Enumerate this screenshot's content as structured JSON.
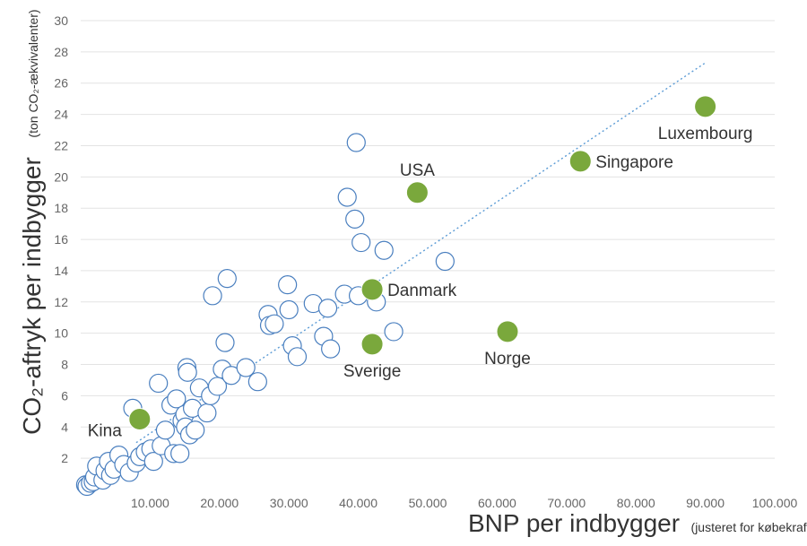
{
  "chart_data": {
    "type": "scatter",
    "xlabel": "BNP per indbygger",
    "xlabel_note": "(justeret for købekraft)",
    "ylabel": "CO₂-aftryk per indbygger",
    "ylabel_note": "(ton CO₂-ækvivalenter)",
    "xlim": [
      0,
      100000
    ],
    "ylim": [
      0,
      30
    ],
    "x_ticks": [
      {
        "value": 10000,
        "label": "10.000"
      },
      {
        "value": 20000,
        "label": "20.000"
      },
      {
        "value": 30000,
        "label": "30.000"
      },
      {
        "value": 40000,
        "label": "40.000"
      },
      {
        "value": 50000,
        "label": "50.000"
      },
      {
        "value": 60000,
        "label": "60.000"
      },
      {
        "value": 70000,
        "label": "70.000"
      },
      {
        "value": 80000,
        "label": "80.000"
      },
      {
        "value": 90000,
        "label": "90.000"
      },
      {
        "value": 100000,
        "label": "100.000"
      }
    ],
    "y_ticks": [
      {
        "value": 2,
        "label": "2"
      },
      {
        "value": 4,
        "label": "4"
      },
      {
        "value": 6,
        "label": "6"
      },
      {
        "value": 8,
        "label": "8"
      },
      {
        "value": 10,
        "label": "10"
      },
      {
        "value": 12,
        "label": "12"
      },
      {
        "value": 14,
        "label": "14"
      },
      {
        "value": 16,
        "label": "16"
      },
      {
        "value": 18,
        "label": "18"
      },
      {
        "value": 20,
        "label": "20"
      },
      {
        "value": 22,
        "label": "22"
      },
      {
        "value": 24,
        "label": "24"
      },
      {
        "value": 26,
        "label": "26"
      },
      {
        "value": 28,
        "label": "28"
      },
      {
        "value": 30,
        "label": "30"
      }
    ],
    "grid": "horizontal",
    "trendline": {
      "style": "dotted",
      "from": [
        8000,
        3.0
      ],
      "to": [
        90000,
        27.3
      ]
    },
    "highlighted": [
      {
        "label": "Kina",
        "x": 8500,
        "y": 4.5,
        "label_side": "left"
      },
      {
        "label": "Sverige",
        "x": 42000,
        "y": 9.3,
        "label_side": "below"
      },
      {
        "label": "Danmark",
        "x": 42000,
        "y": 12.8,
        "label_side": "right"
      },
      {
        "label": "USA",
        "x": 48500,
        "y": 19.0,
        "label_side": "above"
      },
      {
        "label": "Norge",
        "x": 61500,
        "y": 10.1,
        "label_side": "below"
      },
      {
        "label": "Singapore",
        "x": 72000,
        "y": 21.0,
        "label_side": "right"
      },
      {
        "label": "Luxembourg",
        "x": 90000,
        "y": 24.5,
        "label_side": "below"
      }
    ],
    "points": [
      {
        "x": 700,
        "y": 0.3
      },
      {
        "x": 900,
        "y": 0.2
      },
      {
        "x": 1400,
        "y": 0.4
      },
      {
        "x": 1800,
        "y": 0.5
      },
      {
        "x": 2000,
        "y": 0.8
      },
      {
        "x": 2300,
        "y": 1.5
      },
      {
        "x": 3200,
        "y": 0.6
      },
      {
        "x": 3500,
        "y": 1.2
      },
      {
        "x": 4000,
        "y": 1.8
      },
      {
        "x": 4300,
        "y": 0.9
      },
      {
        "x": 4800,
        "y": 1.3
      },
      {
        "x": 5500,
        "y": 2.2
      },
      {
        "x": 6200,
        "y": 1.6
      },
      {
        "x": 7000,
        "y": 1.1
      },
      {
        "x": 7500,
        "y": 5.2
      },
      {
        "x": 8000,
        "y": 1.7
      },
      {
        "x": 8500,
        "y": 2.1
      },
      {
        "x": 9300,
        "y": 2.4
      },
      {
        "x": 10100,
        "y": 2.6
      },
      {
        "x": 10500,
        "y": 1.8
      },
      {
        "x": 11200,
        "y": 6.8
      },
      {
        "x": 11600,
        "y": 2.8
      },
      {
        "x": 12200,
        "y": 3.8
      },
      {
        "x": 13000,
        "y": 5.4
      },
      {
        "x": 13400,
        "y": 2.3
      },
      {
        "x": 13800,
        "y": 5.8
      },
      {
        "x": 14300,
        "y": 2.3
      },
      {
        "x": 14600,
        "y": 4.4
      },
      {
        "x": 15000,
        "y": 4.8
      },
      {
        "x": 15100,
        "y": 4.0
      },
      {
        "x": 15300,
        "y": 7.8
      },
      {
        "x": 15400,
        "y": 7.5
      },
      {
        "x": 15700,
        "y": 3.5
      },
      {
        "x": 16100,
        "y": 5.2
      },
      {
        "x": 16500,
        "y": 3.8
      },
      {
        "x": 17100,
        "y": 6.5
      },
      {
        "x": 18200,
        "y": 4.9
      },
      {
        "x": 18700,
        "y": 6.0
      },
      {
        "x": 19000,
        "y": 12.4
      },
      {
        "x": 19700,
        "y": 6.6
      },
      {
        "x": 20400,
        "y": 7.7
      },
      {
        "x": 20800,
        "y": 9.4
      },
      {
        "x": 21100,
        "y": 13.5
      },
      {
        "x": 21700,
        "y": 7.3
      },
      {
        "x": 23800,
        "y": 7.8
      },
      {
        "x": 25500,
        "y": 6.9
      },
      {
        "x": 27000,
        "y": 11.2
      },
      {
        "x": 27200,
        "y": 10.5
      },
      {
        "x": 27900,
        "y": 10.6
      },
      {
        "x": 29800,
        "y": 13.1
      },
      {
        "x": 30000,
        "y": 11.5
      },
      {
        "x": 30500,
        "y": 9.2
      },
      {
        "x": 31200,
        "y": 8.5
      },
      {
        "x": 33500,
        "y": 11.9
      },
      {
        "x": 35000,
        "y": 9.8
      },
      {
        "x": 35600,
        "y": 11.6
      },
      {
        "x": 36000,
        "y": 9.0
      },
      {
        "x": 38000,
        "y": 12.5
      },
      {
        "x": 38400,
        "y": 18.7
      },
      {
        "x": 39500,
        "y": 17.3
      },
      {
        "x": 39700,
        "y": 22.2
      },
      {
        "x": 40000,
        "y": 12.4
      },
      {
        "x": 40400,
        "y": 15.8
      },
      {
        "x": 42600,
        "y": 12.0
      },
      {
        "x": 43700,
        "y": 15.3
      },
      {
        "x": 45100,
        "y": 10.1
      },
      {
        "x": 52500,
        "y": 14.6
      }
    ]
  }
}
